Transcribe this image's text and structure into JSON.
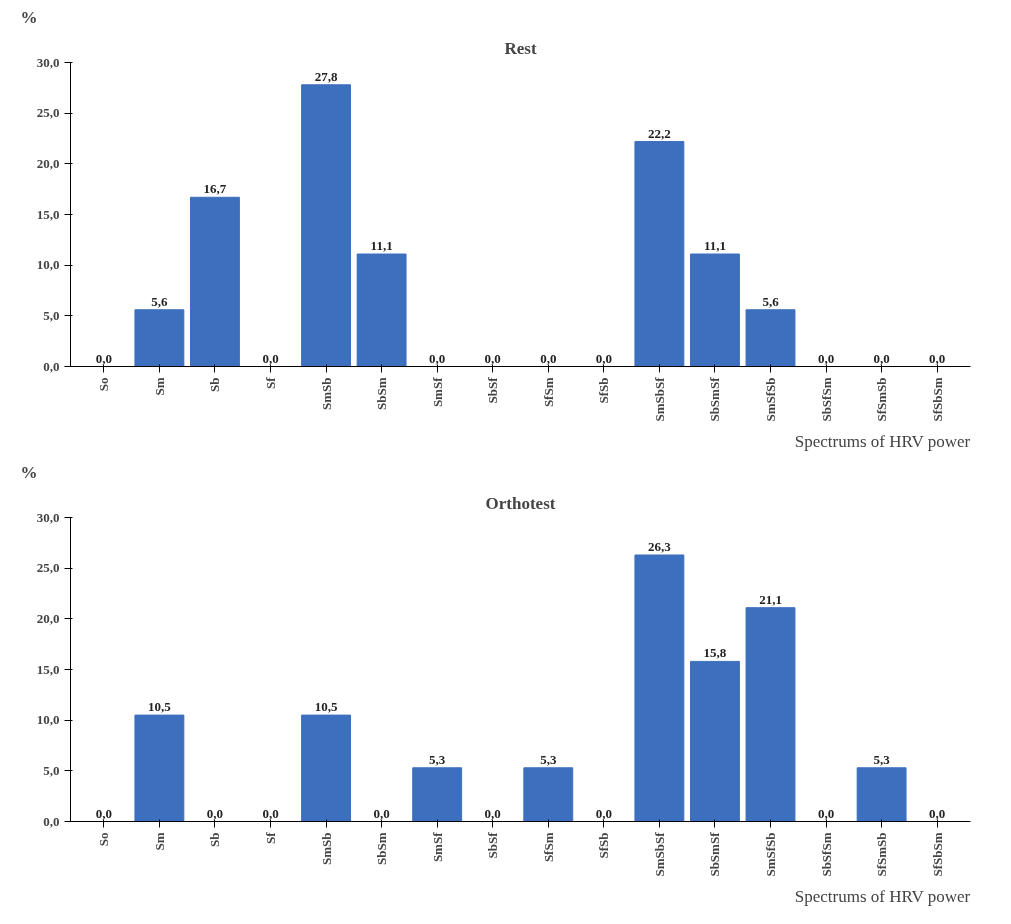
{
  "chart_data": [
    {
      "type": "bar",
      "title": "Rest",
      "ylabel": "%",
      "xlabel": "Spectrums of HRV power",
      "categories": [
        "So",
        "Sm",
        "Sb",
        "Sf",
        "SmSb",
        "SbSm",
        "SmSf",
        "SbSf",
        "SfSm",
        "SfSb",
        "SmSbSf",
        "SbSmSf",
        "SmSfSb",
        "SbSfSm",
        "SfSmSb",
        "SfSbSm"
      ],
      "values": [
        0,
        5.6,
        16.7,
        0,
        27.8,
        11.1,
        0,
        0,
        0,
        0,
        22.2,
        11.1,
        5.6,
        0,
        0,
        0
      ],
      "value_labels": [
        "0,0",
        "5,6",
        "16,7",
        "0,0",
        "27,8",
        "11,1",
        "0,0",
        "0,0",
        "0,0",
        "0,0",
        "22,2",
        "11,1",
        "5,6",
        "0,0",
        "0,0",
        "0,0"
      ],
      "color": "#3d6fbf",
      "ylim": [
        0,
        30
      ],
      "yticks": [
        {
          "value": 0,
          "label": "0,0"
        },
        {
          "value": 5,
          "label": "5,0"
        },
        {
          "value": 10,
          "label": "10,0"
        },
        {
          "value": 15,
          "label": "15,0"
        },
        {
          "value": 20,
          "label": "20,0"
        },
        {
          "value": 25,
          "label": "25,0"
        },
        {
          "value": 30,
          "label": "30,0"
        }
      ],
      "grid": false
    },
    {
      "type": "bar",
      "title": "Orthotest",
      "ylabel": "%",
      "xlabel": "Spectrums of HRV power",
      "categories": [
        "So",
        "Sm",
        "Sb",
        "Sf",
        "SmSb",
        "SbSm",
        "SmSf",
        "SbSf",
        "SfSm",
        "SfSb",
        "SmSbSf",
        "SbSmSf",
        "SmSfSb",
        "SbSfSm",
        "SfSmSb",
        "SfSbSm"
      ],
      "values": [
        0,
        10.5,
        0,
        0,
        10.5,
        0,
        5.3,
        0,
        5.3,
        0,
        26.3,
        15.8,
        21.1,
        0,
        5.3,
        0
      ],
      "value_labels": [
        "0,0",
        "10,5",
        "0,0",
        "0,0",
        "10,5",
        "0,0",
        "5,3",
        "0,0",
        "5,3",
        "0,0",
        "26,3",
        "15,8",
        "21,1",
        "0,0",
        "5,3",
        "0,0"
      ],
      "color": "#3d6fbf",
      "ylim": [
        0,
        30
      ],
      "yticks": [
        {
          "value": 0,
          "label": "0,0"
        },
        {
          "value": 5,
          "label": "5,0"
        },
        {
          "value": 10,
          "label": "10,0"
        },
        {
          "value": 15,
          "label": "15,0"
        },
        {
          "value": 20,
          "label": "20,0"
        },
        {
          "value": 25,
          "label": "25,0"
        },
        {
          "value": 30,
          "label": "30,0"
        }
      ],
      "grid": false
    }
  ]
}
